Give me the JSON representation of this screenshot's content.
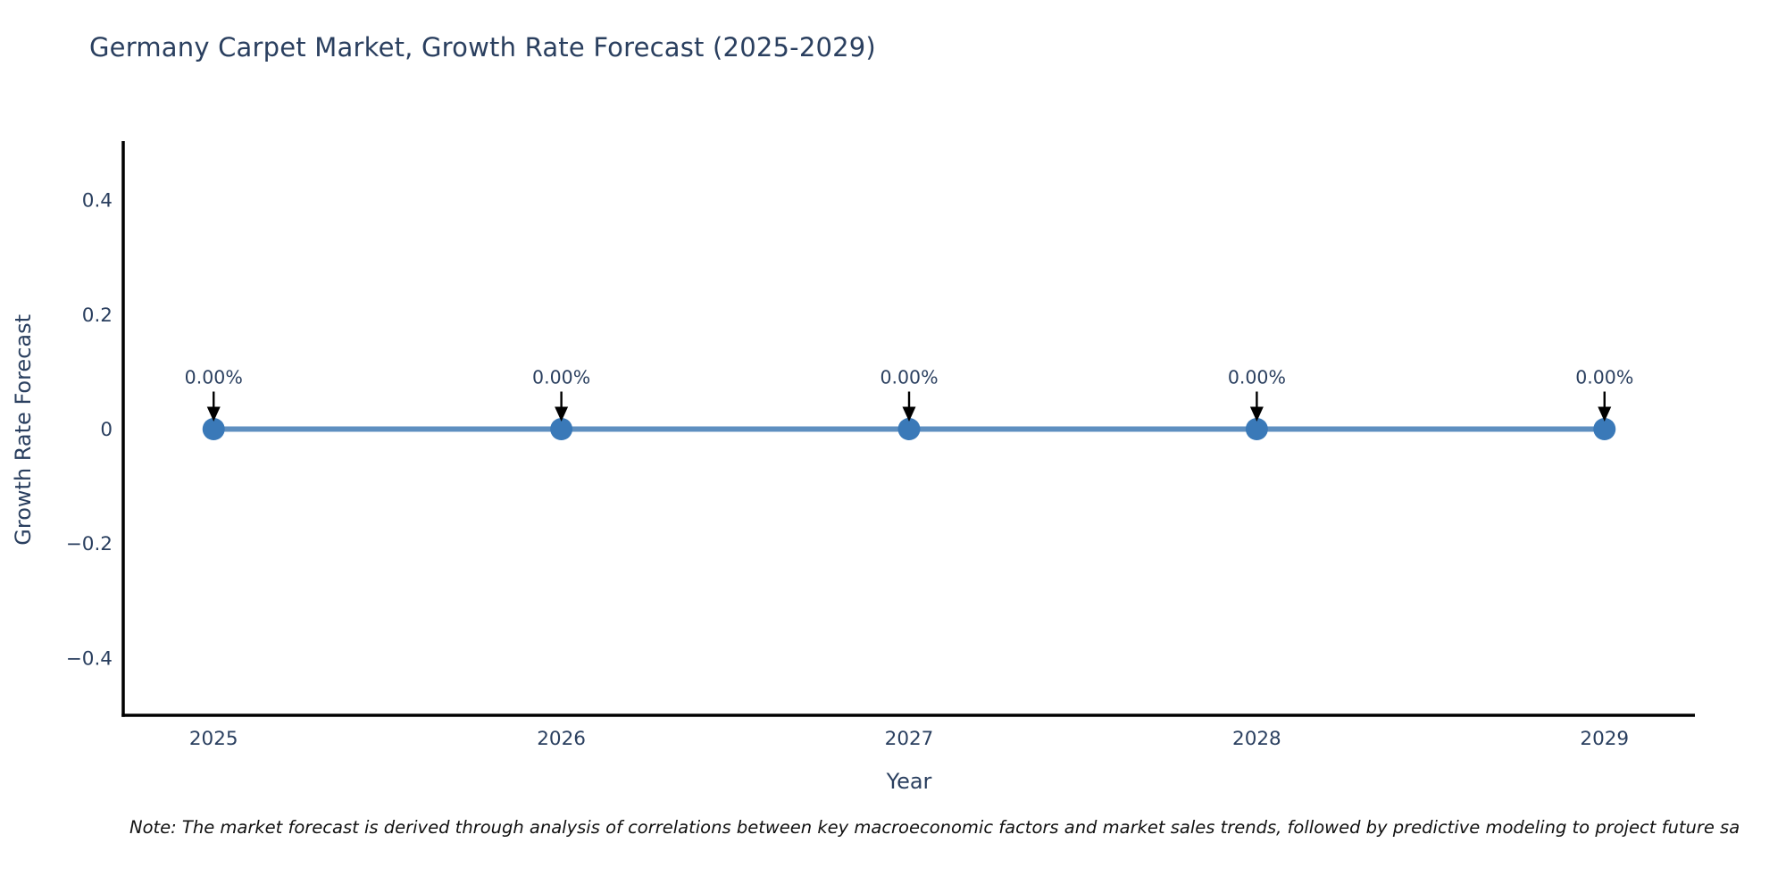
{
  "chart_data": {
    "type": "line",
    "title": "Germany Carpet Market, Growth Rate Forecast (2025-2029)",
    "xlabel": "Year",
    "ylabel": "Growth Rate Forecast",
    "categories": [
      2025,
      2026,
      2027,
      2028,
      2029
    ],
    "series": [
      {
        "name": "Growth Rate Forecast",
        "values": [
          0,
          0,
          0,
          0,
          0
        ]
      }
    ],
    "point_labels": [
      "0.00%",
      "0.00%",
      "0.00%",
      "0.00%",
      "0.00%"
    ],
    "xlim": [
      2024.74,
      2029.26
    ],
    "ylim": [
      -0.5,
      0.5
    ],
    "yticks": [
      {
        "v": 0.4,
        "label": "0.4"
      },
      {
        "v": 0.2,
        "label": "0.2"
      },
      {
        "v": 0,
        "label": "0"
      },
      {
        "v": -0.2,
        "label": "−0.2"
      },
      {
        "v": -0.4,
        "label": "−0.4"
      }
    ],
    "grid": false,
    "legend_position": "none",
    "colors": {
      "line": "#5e8fc0",
      "marker": "#3a79b8",
      "axis": "#000000",
      "text": "#2a3f5f",
      "note": "#111111"
    },
    "note": "Note: The market forecast is derived through analysis of correlations between key macroeconomic factors and market sales trends, followed by predictive modeling to project future sa"
  }
}
